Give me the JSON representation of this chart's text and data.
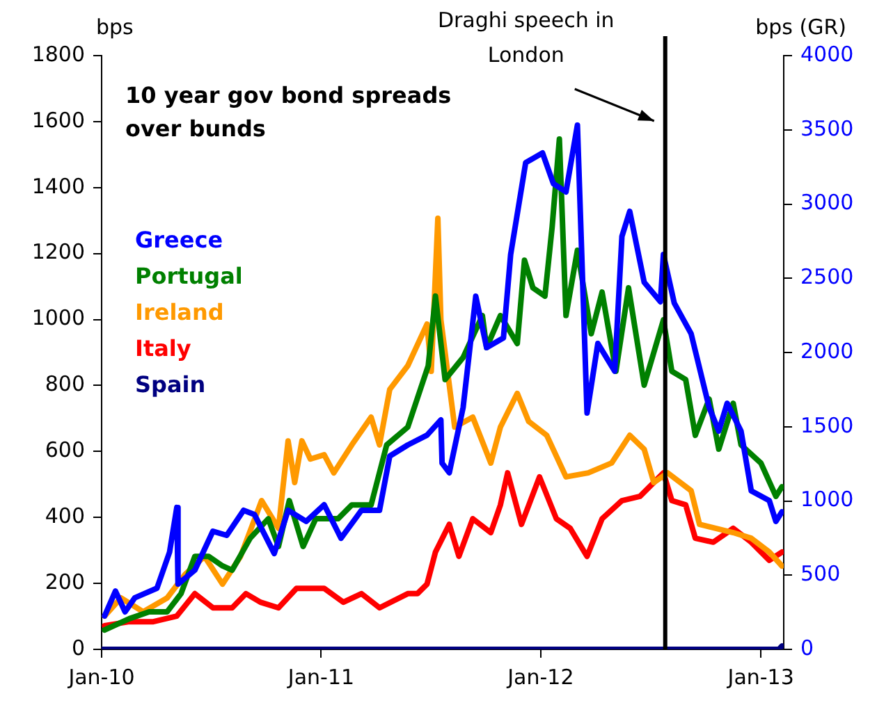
{
  "chart_data": {
    "type": "line",
    "title": "10 year gov bond spreads over bunds",
    "ylabel": "bps",
    "y2label": "bps (GR)",
    "legend": "top left",
    "grid": false,
    "marker": "none",
    "line_style": "solid",
    "xlim": [
      "2010-01-01",
      "2013-02-08"
    ],
    "xticks": [
      {
        "value": "2010-01-01",
        "label": "Jan-10"
      },
      {
        "value": "2011-01-01",
        "label": "Jan-11"
      },
      {
        "value": "2012-01-01",
        "label": "Jan-12"
      },
      {
        "value": "2013-01-01",
        "label": "Jan-13"
      }
    ],
    "ylim": [
      0,
      1800
    ],
    "yticks": [
      0,
      200,
      400,
      600,
      800,
      1000,
      1200,
      1400,
      1600,
      1800
    ],
    "y2lim": [
      0,
      4000
    ],
    "y2ticks": [
      0,
      500,
      1000,
      1500,
      2000,
      2500,
      3000,
      3500,
      4000
    ],
    "ref_lines": [
      {
        "axis": "x",
        "value": "2012-07-26",
        "label": "Draghi speech in London",
        "color": "#000000"
      }
    ],
    "series": [
      {
        "name": "Greece",
        "color": "#0000ff",
        "axis": "y2",
        "x": [
          "2010-01-06",
          "2010-01-24",
          "2010-02-09",
          "2010-02-25",
          "2010-04-03",
          "2010-04-24",
          "2010-05-06",
          "2010-05-08",
          "2010-06-05",
          "2010-07-05",
          "2010-07-28",
          "2010-08-25",
          "2010-09-12",
          "2010-10-15",
          "2010-11-07",
          "2010-12-07",
          "2011-01-06",
          "2011-02-03",
          "2011-03-09",
          "2011-04-08",
          "2011-04-25",
          "2011-05-25",
          "2011-06-26",
          "2011-07-19",
          "2011-07-21",
          "2011-08-02",
          "2011-08-25",
          "2011-09-15",
          "2011-10-03",
          "2011-10-31",
          "2011-11-12",
          "2011-12-07",
          "2012-01-04",
          "2012-01-22",
          "2012-02-12",
          "2012-03-02",
          "2012-03-18",
          "2012-04-05",
          "2012-05-03",
          "2012-05-15",
          "2012-05-28",
          "2012-06-21",
          "2012-07-18",
          "2012-07-23",
          "2012-08-10",
          "2012-09-07",
          "2012-10-07",
          "2012-10-23",
          "2012-11-06",
          "2012-11-29",
          "2012-12-16",
          "2013-01-15",
          "2013-01-26",
          "2013-02-05"
        ],
        "values": [
          225,
          393,
          253,
          347,
          412,
          656,
          956,
          440,
          534,
          796,
          768,
          937,
          909,
          646,
          937,
          862,
          974,
          749,
          937,
          937,
          1302,
          1377,
          1443,
          1546,
          1255,
          1190,
          1630,
          2379,
          2033,
          2098,
          2660,
          3279,
          3344,
          3138,
          3082,
          3532,
          1593,
          2061,
          1874,
          2782,
          2951,
          2473,
          2342,
          2660,
          2333,
          2127,
          1630,
          1471,
          1658,
          1471,
          1068,
          1002,
          862,
          927
        ]
      },
      {
        "name": "Portugal",
        "color": "#008000",
        "x": [
          "2010-01-06",
          "2010-02-16",
          "2010-03-21",
          "2010-04-20",
          "2010-05-13",
          "2010-06-05",
          "2010-06-28",
          "2010-07-21",
          "2010-08-06",
          "2010-09-05",
          "2010-10-05",
          "2010-10-22",
          "2010-11-09",
          "2010-12-02",
          "2010-12-23",
          "2011-01-29",
          "2011-02-21",
          "2011-03-25",
          "2011-04-20",
          "2011-05-25",
          "2011-06-28",
          "2011-07-10",
          "2011-07-26",
          "2011-08-25",
          "2011-09-26",
          "2011-10-03",
          "2011-10-26",
          "2011-11-23",
          "2011-12-05",
          "2011-12-19",
          "2012-01-08",
          "2012-01-20",
          "2012-02-01",
          "2012-02-12",
          "2012-03-02",
          "2012-03-25",
          "2012-04-12",
          "2012-05-05",
          "2012-05-26",
          "2012-06-21",
          "2012-07-23",
          "2012-08-06",
          "2012-08-29",
          "2012-09-14",
          "2012-10-07",
          "2012-10-23",
          "2012-11-16",
          "2012-11-29",
          "2013-01-01",
          "2013-01-26",
          "2013-02-05"
        ],
        "values": [
          59,
          93,
          114,
          114,
          169,
          282,
          282,
          253,
          240,
          337,
          396,
          312,
          451,
          312,
          396,
          396,
          438,
          438,
          620,
          674,
          860,
          1071,
          818,
          885,
          1012,
          915,
          1012,
          927,
          1180,
          1096,
          1071,
          1281,
          1547,
          1012,
          1210,
          957,
          1083,
          843,
          1096,
          801,
          999,
          843,
          818,
          649,
          759,
          607,
          746,
          620,
          565,
          464,
          493
        ]
      },
      {
        "name": "Ireland",
        "color": "#ff9900",
        "x": [
          "2010-01-06",
          "2010-02-02",
          "2010-03-11",
          "2010-04-20",
          "2010-05-20",
          "2010-06-21",
          "2010-07-21",
          "2010-08-20",
          "2010-09-24",
          "2010-10-22",
          "2010-11-07",
          "2010-11-18",
          "2010-11-30",
          "2010-12-14",
          "2011-01-06",
          "2011-01-22",
          "2011-02-21",
          "2011-03-25",
          "2011-04-08",
          "2011-04-25",
          "2011-05-25",
          "2011-06-26",
          "2011-07-03",
          "2011-07-14",
          "2011-07-19",
          "2011-08-11",
          "2011-09-10",
          "2011-10-10",
          "2011-10-26",
          "2011-11-23",
          "2011-12-12",
          "2012-01-11",
          "2012-02-12",
          "2012-03-20",
          "2012-04-28",
          "2012-05-28",
          "2012-06-21",
          "2012-07-07",
          "2012-07-30",
          "2012-09-07",
          "2012-09-21",
          "2012-11-16",
          "2012-12-16",
          "2013-01-15",
          "2013-02-05"
        ],
        "values": [
          101,
          156,
          114,
          156,
          228,
          282,
          198,
          282,
          451,
          367,
          632,
          506,
          632,
          577,
          590,
          535,
          620,
          704,
          620,
          788,
          860,
          986,
          843,
          1307,
          999,
          674,
          704,
          565,
          674,
          776,
          691,
          649,
          523,
          535,
          565,
          649,
          607,
          506,
          535,
          481,
          379,
          354,
          337,
          295,
          253
        ]
      },
      {
        "name": "Italy",
        "color": "#ff0000",
        "x": [
          "2010-01-06",
          "2010-02-16",
          "2010-03-28",
          "2010-05-06",
          "2010-06-05",
          "2010-07-05",
          "2010-08-06",
          "2010-08-29",
          "2010-09-22",
          "2010-10-22",
          "2010-11-21",
          "2011-01-06",
          "2011-02-07",
          "2011-03-09",
          "2011-04-08",
          "2011-05-25",
          "2011-06-10",
          "2011-06-26",
          "2011-07-10",
          "2011-08-02",
          "2011-08-18",
          "2011-09-10",
          "2011-10-10",
          "2011-10-26",
          "2011-11-07",
          "2011-11-30",
          "2011-12-30",
          "2012-01-27",
          "2012-02-19",
          "2012-03-18",
          "2012-04-12",
          "2012-05-15",
          "2012-06-14",
          "2012-07-23",
          "2012-08-06",
          "2012-08-29",
          "2012-09-14",
          "2012-10-14",
          "2012-11-16",
          "2012-12-16",
          "2013-01-15",
          "2013-02-05"
        ],
        "values": [
          72,
          84,
          84,
          101,
          169,
          126,
          126,
          169,
          143,
          126,
          185,
          185,
          143,
          169,
          126,
          169,
          169,
          198,
          295,
          379,
          282,
          396,
          354,
          438,
          535,
          379,
          523,
          396,
          367,
          282,
          396,
          451,
          464,
          535,
          451,
          438,
          337,
          325,
          367,
          325,
          270,
          295
        ]
      },
      {
        "name": "Spain",
        "color": "#000080",
        "x": [
          "2010-01-01",
          "2013-01-31",
          "2013-02-05"
        ],
        "values": [
          0,
          0,
          10
        ]
      }
    ]
  }
}
